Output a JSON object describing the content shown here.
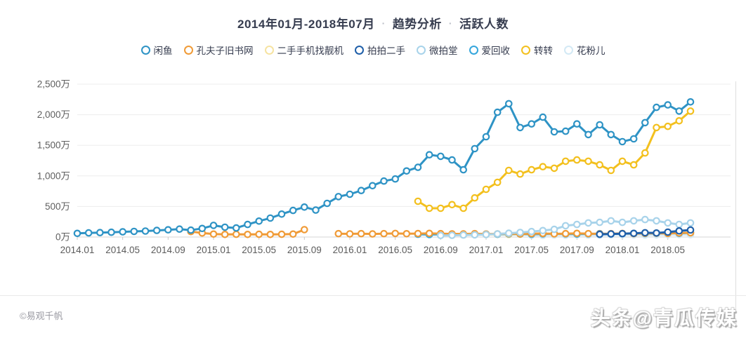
{
  "title": {
    "range": "2014年01月-2018年07月",
    "separator": "·",
    "metric": "趋势分析",
    "measure": "活跃人数"
  },
  "footer": {
    "source": "©易观千帆",
    "watermark": "头条@青瓜传媒"
  },
  "chart_data": {
    "type": "line",
    "title": "2014年01月-2018年07月 · 趋势分析 · 活跃人数",
    "unit": "万",
    "x_start": "2014.01",
    "x_end": "2018.07",
    "months_total": 55,
    "ylim": [
      0,
      2500
    ],
    "grid": true,
    "legend_position": "top",
    "x_tick_labels": [
      "2014.01",
      "2014.05",
      "2014.09",
      "2015.01",
      "2015.05",
      "2015.09",
      "2016.01",
      "2016.05",
      "2016.09",
      "2017.01",
      "2017.05",
      "2017.09",
      "2018.01",
      "2018.05"
    ],
    "y_tick_labels": [
      "0万",
      "500万",
      "1,000万",
      "1,500万",
      "2,000万",
      "2,500万"
    ],
    "draw_order": [
      2,
      7,
      5,
      1,
      4,
      0,
      6,
      3
    ],
    "series": [
      {
        "name": "闲鱼",
        "color": "#2e93c5",
        "start": 0,
        "values": [
          60,
          68,
          72,
          78,
          85,
          92,
          98,
          108,
          118,
          130,
          112,
          140,
          190,
          160,
          148,
          205,
          260,
          310,
          375,
          435,
          490,
          440,
          550,
          660,
          700,
          760,
          840,
          915,
          950,
          1080,
          1140,
          1345,
          1320,
          1260,
          1100,
          1445,
          1640,
          2040,
          2180,
          1790,
          1850,
          1960,
          1720,
          1730,
          1850,
          1675,
          1835,
          1675,
          1560,
          1605,
          1870,
          2120,
          2160,
          2060,
          2210
        ]
      },
      {
        "name": "孔夫子旧书网",
        "color": "#f09b37",
        "start": 10,
        "values": [
          90,
          65,
          48,
          42,
          45,
          42,
          45,
          42,
          45,
          48,
          120,
          null,
          null,
          55,
          52,
          55,
          50,
          55,
          58,
          54,
          56,
          60,
          55,
          52,
          50,
          55,
          48,
          52,
          55,
          50,
          55,
          58,
          52,
          55,
          60,
          55,
          52,
          55,
          58,
          55,
          60,
          62,
          58,
          65,
          70
        ]
      },
      {
        "name": "二手手机找靓机",
        "color": "#f6e3a1",
        "start": 36,
        "values": [
          40,
          42,
          40,
          45,
          42,
          40,
          45,
          48,
          45,
          42,
          45,
          48,
          50,
          48,
          45,
          50,
          52,
          55,
          50
        ]
      },
      {
        "name": "拍拍二手",
        "color": "#1f5fa9",
        "start": 46,
        "values": [
          45,
          50,
          55,
          60,
          70,
          65,
          80,
          100,
          115
        ]
      },
      {
        "name": "微拍堂",
        "color": "#a8d3ea",
        "start": 32,
        "values": [
          25,
          28,
          32,
          36,
          40,
          50,
          62,
          75,
          90,
          105,
          125,
          185,
          205,
          230,
          240,
          265,
          240,
          265,
          285,
          265,
          230,
          205,
          230
        ]
      },
      {
        "name": "爱回收",
        "color": "#35a6dc",
        "start": 30,
        "values": [
          45,
          40,
          42,
          45,
          42,
          45,
          48,
          45,
          50,
          48,
          45,
          50,
          55,
          50,
          48,
          52,
          55,
          50,
          55,
          60,
          58,
          62,
          65,
          60,
          70
        ]
      },
      {
        "name": "转转",
        "color": "#f3c01e",
        "start": 30,
        "values": [
          585,
          470,
          470,
          530,
          470,
          640,
          780,
          895,
          1090,
          1030,
          1100,
          1150,
          1125,
          1240,
          1260,
          1240,
          1180,
          1090,
          1240,
          1180,
          1375,
          1790,
          1810,
          1900,
          2060
        ]
      },
      {
        "name": "花粉儿",
        "color": "#d3e9f5",
        "start": 40,
        "values": [
          30,
          28,
          32,
          30,
          35,
          32,
          30,
          35,
          38,
          35,
          32,
          35,
          38,
          40,
          38
        ]
      }
    ]
  }
}
